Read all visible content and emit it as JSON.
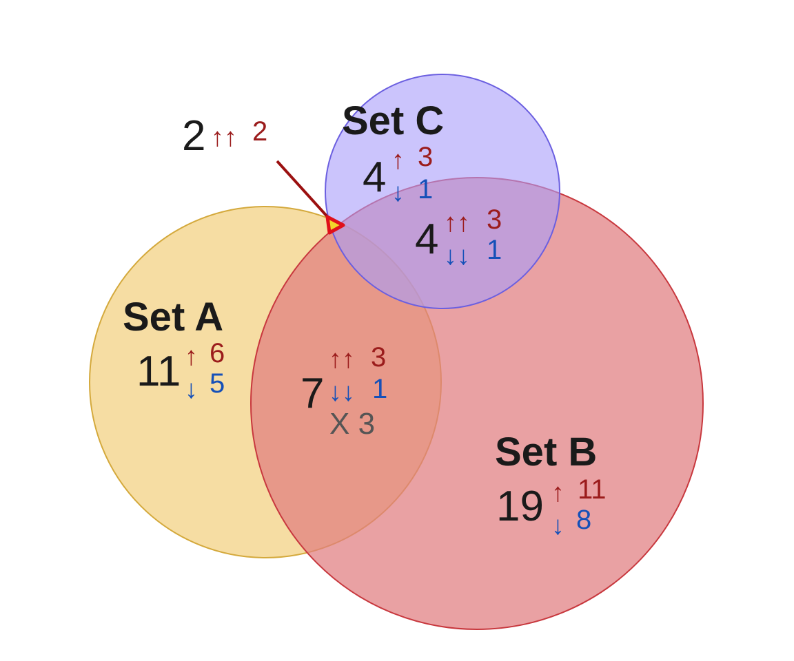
{
  "sets": {
    "a": {
      "title": "Set A",
      "total": "11",
      "up_arrow": "↑",
      "up": "6",
      "down_arrow": "↓",
      "down": "5",
      "fill": "#f0c766",
      "stroke": "#d4a93c"
    },
    "b": {
      "title": "Set B",
      "total": "19",
      "up_arrow": "↑",
      "up": "11",
      "down_arrow": "↓",
      "down": "8",
      "fill": "#e07d80",
      "stroke": "#c8383e"
    },
    "c": {
      "title": "Set C",
      "total": "4",
      "up_arrow": "↑",
      "up": "3",
      "down_arrow": "↓",
      "down": "1",
      "fill": "#a99cfa",
      "stroke": "#6b5fe0"
    }
  },
  "intersections": {
    "ab": {
      "total": "7",
      "up_arrow": "↑↑",
      "up": "3",
      "down_arrow": "↓↓",
      "down": "1",
      "mixed": "X 3"
    },
    "bc": {
      "total": "4",
      "up_arrow": "↑↑",
      "up": "3",
      "down_arrow": "↓↓",
      "down": "1"
    },
    "abc": {
      "total": "2",
      "up_arrow": "↑↑",
      "up": "2",
      "marker_fill": "#f2d52a",
      "marker_stroke": "#e0101a",
      "pointer_color": "#9b1010"
    }
  },
  "colors": {
    "up": "#9b1c1c",
    "down": "#1550b8",
    "mixed": "#555555",
    "text": "#1a1a1a"
  }
}
